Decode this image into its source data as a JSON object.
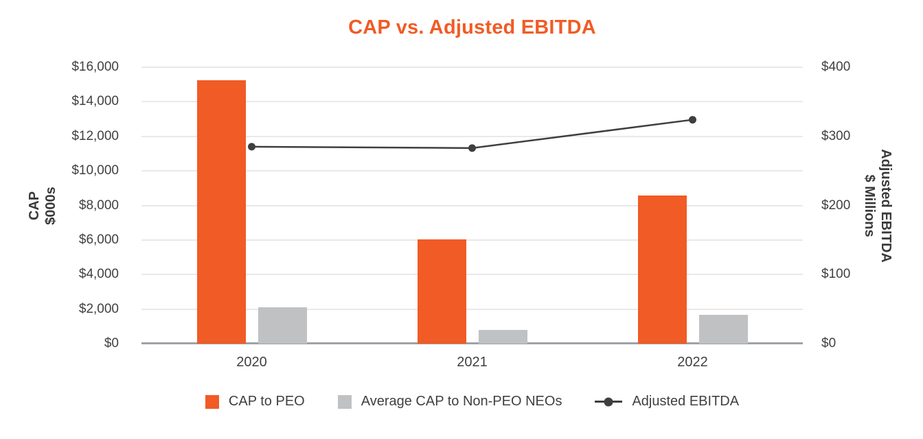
{
  "title": "CAP vs. Adjusted EBITDA",
  "title_color": "#F15B25",
  "chart_data": {
    "type": "bar",
    "subtype": "combo-bar-line",
    "title": "CAP vs. Adjusted EBITDA",
    "categories": [
      "2020",
      "2021",
      "2022"
    ],
    "series": [
      {
        "name": "CAP to PEO",
        "type": "bar",
        "axis": "left",
        "color": "#F15B25",
        "values": [
          15250,
          6050,
          8570
        ]
      },
      {
        "name": "Average CAP to Non-PEO NEOs",
        "type": "bar",
        "axis": "left",
        "color": "#BFC1C3",
        "values": [
          2100,
          780,
          1670
        ]
      },
      {
        "name": "Adjusted EBITDA",
        "type": "line",
        "axis": "right",
        "color": "#3F3F3F",
        "values": [
          285,
          283,
          324
        ]
      }
    ],
    "left_axis": {
      "title_lines": [
        "CAP",
        "$000s"
      ],
      "min": 0,
      "max": 16000,
      "tick_step": 2000,
      "tick_labels": [
        "$0",
        "$2,000",
        "$4,000",
        "$6,000",
        "$8,000",
        "$10,000",
        "$12,000",
        "$14,000",
        "$16,000"
      ]
    },
    "right_axis": {
      "title_lines": [
        "Adjusted EBITDA",
        "$ Millions"
      ],
      "min": 0,
      "max": 400,
      "tick_step": 100,
      "tick_labels": [
        "$0",
        "$100",
        "$200",
        "$300",
        "$400"
      ]
    },
    "grid": true,
    "legend_position": "bottom",
    "colors": {
      "gridline": "#E9E9E9",
      "baseline": "#9FA2A6",
      "text": "#404040"
    }
  }
}
